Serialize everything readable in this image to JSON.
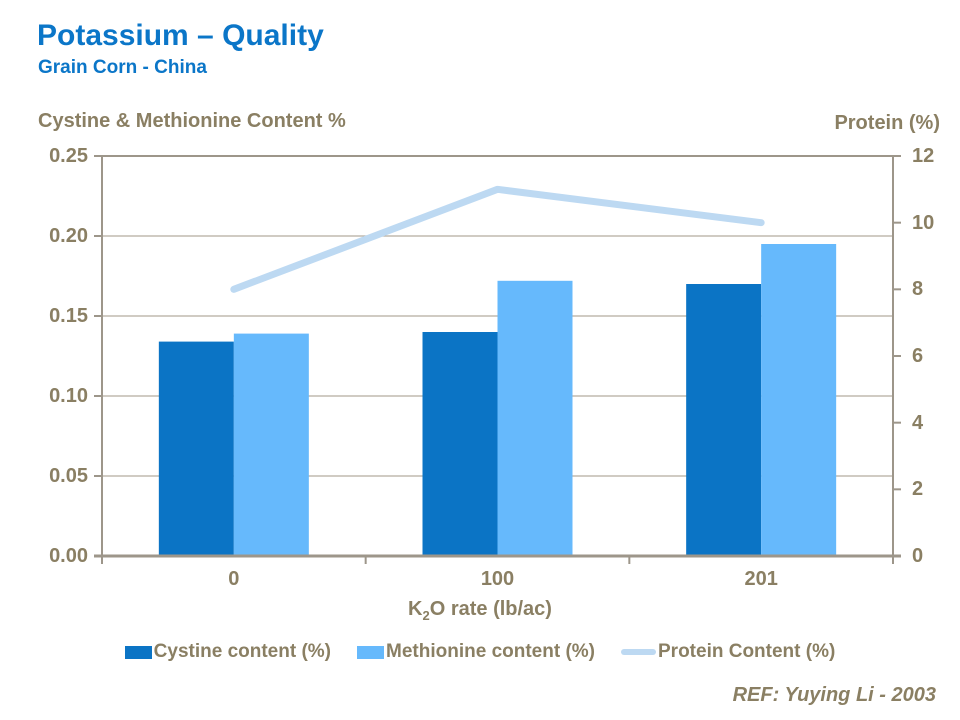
{
  "header": {
    "title": "Potassium – Quality",
    "subtitle": "Grain Corn - China"
  },
  "axes": {
    "left_title": "Cystine & Methionine Content %",
    "right_title": "Protein (%)",
    "x_title_parts": {
      "prefix": "K",
      "sub": "2",
      "suffix": "O rate (lb/ac)"
    }
  },
  "legend": [
    {
      "label": "Cystine content (%)",
      "marker": "square",
      "color": "#0b74c5"
    },
    {
      "label": "Methionine content (%)",
      "marker": "square",
      "color": "#66b9fc"
    },
    {
      "label": "Protein Content (%)",
      "marker": "line",
      "color": "#bdd9f2"
    }
  ],
  "footer": {
    "ref": "REF: Yuying Li - 2003"
  },
  "colors": {
    "title_blue": "#0b76c8",
    "bar_dark_blue": "#0b74c5",
    "bar_light_blue": "#66b9fc",
    "line_pale_blue": "#bdd9f2",
    "axis_line": "#9d968a",
    "gridline": "#b3ac9f",
    "axis_text": "#8a7f63"
  },
  "chart_data": {
    "type": "bar",
    "subtype": "bar+line dual axis",
    "title": "Potassium – Quality",
    "subtitle": "Grain Corn - China",
    "categories": [
      "0",
      "100",
      "201"
    ],
    "series": [
      {
        "name": "Cystine content (%)",
        "type": "bar",
        "axis": "left",
        "color": "#0b74c5",
        "values": [
          0.134,
          0.14,
          0.17
        ]
      },
      {
        "name": "Methionine content (%)",
        "type": "bar",
        "axis": "left",
        "color": "#66b9fc",
        "values": [
          0.139,
          0.172,
          0.195
        ]
      },
      {
        "name": "Protein Content (%)",
        "type": "line",
        "axis": "right",
        "color": "#bdd9f2",
        "values": [
          8.0,
          11.0,
          10.0
        ]
      }
    ],
    "xlabel": "K2O rate (lb/ac)",
    "y_left": {
      "title": "Cystine & Methionine Content %",
      "min": 0,
      "max": 0.25,
      "ticks": [
        "0.00",
        "0.05",
        "0.10",
        "0.15",
        "0.20",
        "0.25"
      ]
    },
    "y_right": {
      "title": "Protein (%)",
      "min": 0,
      "max": 12,
      "ticks": [
        "0",
        "2",
        "4",
        "6",
        "8",
        "10",
        "12"
      ]
    },
    "grid": true,
    "legend_position": "bottom"
  }
}
